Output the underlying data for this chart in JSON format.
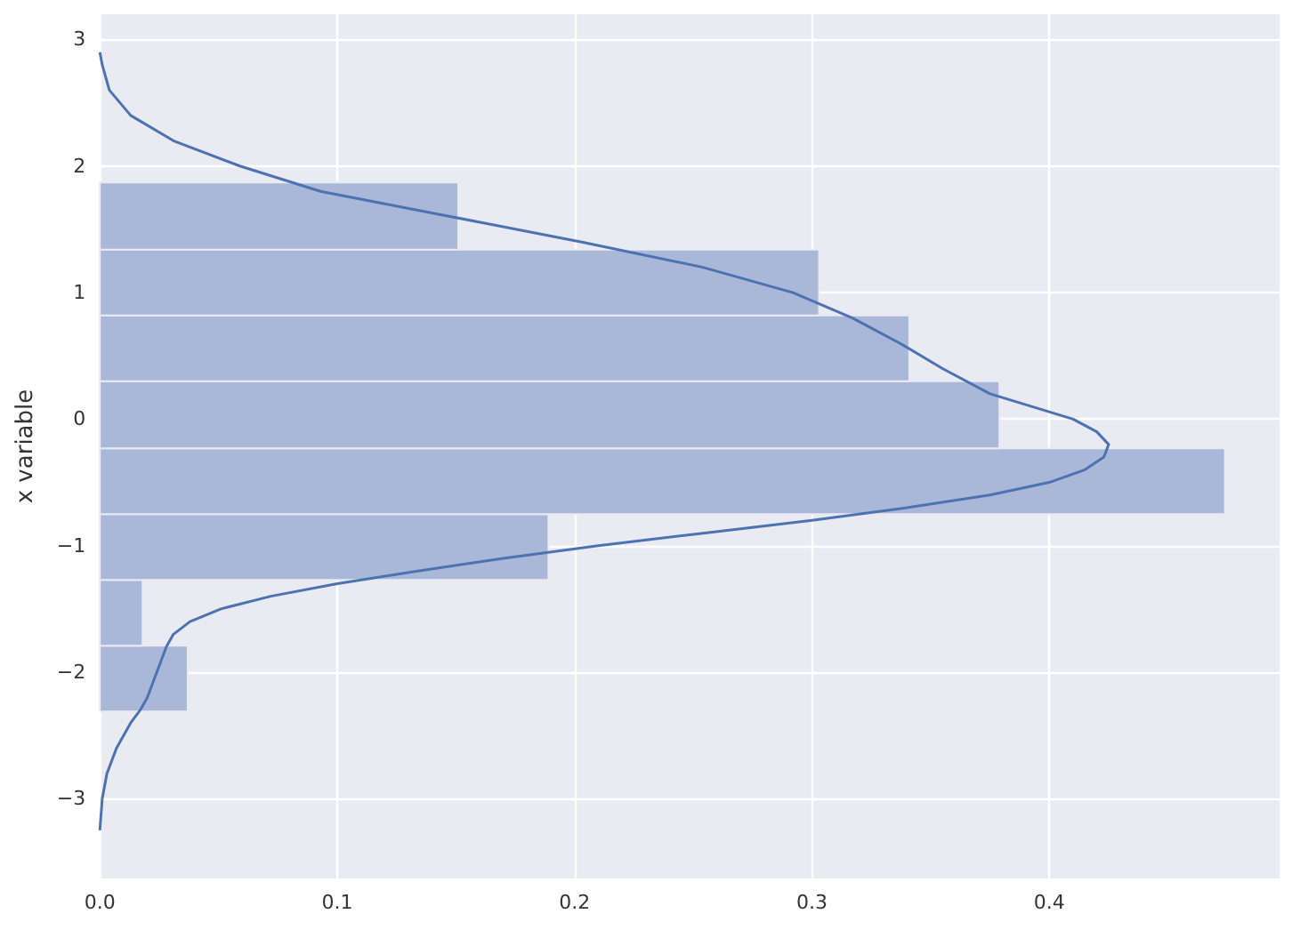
{
  "chart_data": {
    "type": "histogram",
    "orientation": "horizontal",
    "ylabel": "x variable",
    "series": [
      {
        "color": "#a9b8d8",
        "bins": [
          -2.31,
          -1.79,
          -1.27,
          -0.75,
          -0.23,
          0.3,
          0.82,
          1.34,
          1.87
        ],
        "values": [
          0.037,
          0.018,
          0.189,
          0.474,
          0.379,
          0.341,
          0.303,
          0.151
        ]
      },
      {
        "type": "line",
        "color": "#4c72b0",
        "x": [
          -3.25,
          -3.0,
          -2.8,
          -2.6,
          -2.4,
          -2.3,
          -2.2,
          -2.0,
          -1.9,
          -1.8,
          -1.7,
          -1.6,
          -1.5,
          -1.4,
          -1.3,
          -1.2,
          -1.1,
          -1.0,
          -0.9,
          -0.8,
          -0.7,
          -0.6,
          -0.5,
          -0.4,
          -0.3,
          -0.2,
          -0.1,
          0.0,
          0.2,
          0.4,
          0.6,
          0.8,
          1.0,
          1.2,
          1.4,
          1.6,
          1.8,
          2.0,
          2.2,
          2.4,
          2.6,
          2.8,
          2.9
        ],
        "values": [
          0.0,
          0.001,
          0.003,
          0.007,
          0.013,
          0.017,
          0.02,
          0.024,
          0.026,
          0.028,
          0.031,
          0.038,
          0.051,
          0.072,
          0.1,
          0.134,
          0.17,
          0.21,
          0.255,
          0.3,
          0.34,
          0.375,
          0.4,
          0.415,
          0.423,
          0.425,
          0.42,
          0.41,
          0.375,
          0.355,
          0.337,
          0.317,
          0.292,
          0.254,
          0.203,
          0.148,
          0.093,
          0.059,
          0.031,
          0.013,
          0.004,
          0.001,
          0.0
        ]
      }
    ],
    "xlim": [
      0,
      0.497
    ],
    "xticks": [
      {
        "value": 0,
        "label": "0.0"
      },
      0.1,
      0.2,
      0.3,
      0.4
    ],
    "ylim": [
      -3.63,
      3.2
    ],
    "yticks": [
      {
        "value": -3,
        "label": "−3"
      },
      {
        "value": -2,
        "label": "−2"
      },
      {
        "value": -1,
        "label": "−1"
      },
      0,
      1,
      2,
      3
    ],
    "grid": true
  }
}
